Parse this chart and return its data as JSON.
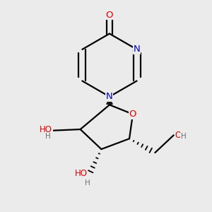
{
  "bg_color": "#ebebeb",
  "atom_colors": {
    "C": "#000000",
    "N": "#0000cc",
    "O": "#dd0000",
    "H": "#707070"
  },
  "bond_color": "#000000",
  "bond_width": 1.6,
  "figsize": [
    3.0,
    3.0
  ],
  "dpi": 100,
  "xlim": [
    0.1,
    0.9
  ],
  "ylim": [
    0.05,
    0.95
  ]
}
